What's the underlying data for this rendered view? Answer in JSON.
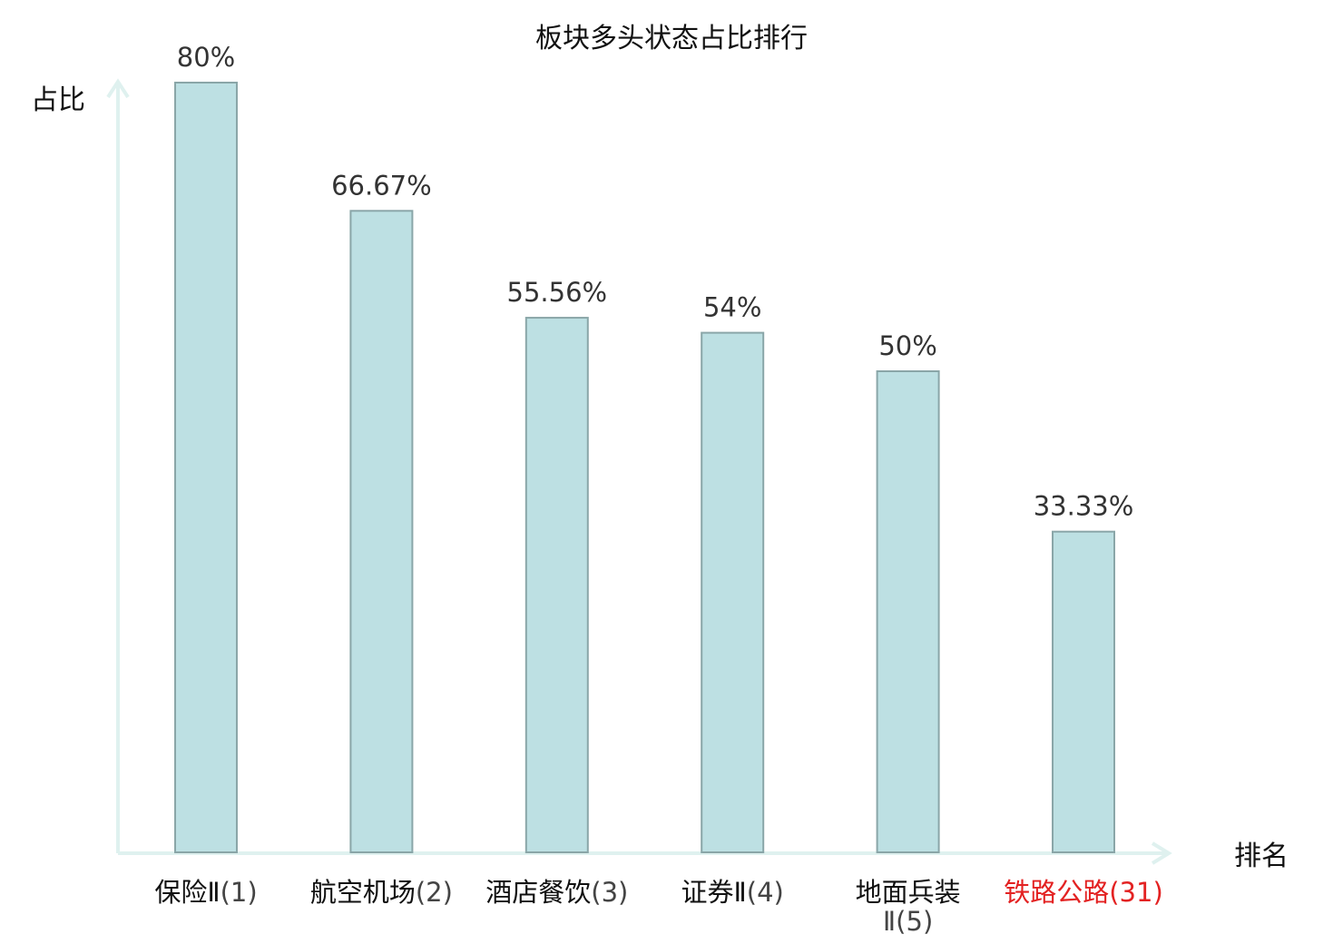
{
  "chart_data": {
    "type": "bar",
    "title": "板块多头状态占比排行",
    "ylabel": "占比",
    "xlabel": "排名",
    "categories": [
      {
        "name": "保险Ⅱ",
        "rank": "(1)"
      },
      {
        "name": "航空机场",
        "rank": "(2)"
      },
      {
        "name": "酒店餐饮",
        "rank": "(3)"
      },
      {
        "name": "证券Ⅱ",
        "rank": "(4)"
      },
      {
        "name": "地面兵装",
        "rank": "Ⅱ(5)"
      },
      {
        "name": "铁路公路",
        "rank": "(31)"
      }
    ],
    "values": [
      80,
      66.67,
      55.56,
      54,
      50,
      33.33
    ],
    "value_labels": [
      "80%",
      "66.67%",
      "55.56%",
      "54%",
      "50%",
      "33.33%"
    ],
    "ylim": [
      0,
      80
    ],
    "grid": false,
    "highlight_index": 5,
    "colors": {
      "bar_fill": "#bde0e3",
      "bar_stroke": "#8aa6a8",
      "axis": "#dff1ef",
      "highlight_text": "#e32222",
      "rank_text": "#444444",
      "label_text": "#111111"
    }
  }
}
